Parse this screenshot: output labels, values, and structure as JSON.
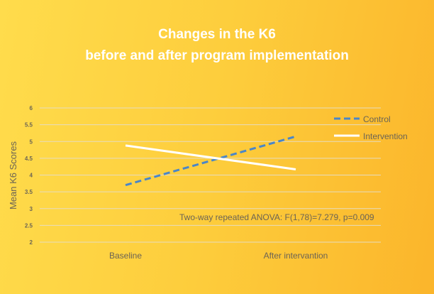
{
  "chart_data": {
    "type": "line",
    "title": [
      "Changes in the K6",
      "before and after program implementation"
    ],
    "xlabel": "",
    "ylabel": "Mean K6 Scores",
    "categories": [
      "Baseline",
      "After intervantion"
    ],
    "ylim": [
      2,
      6
    ],
    "yticks": [
      "2",
      "2.5",
      "3",
      "3.5",
      "4",
      "4.5",
      "5",
      "5.5",
      "6"
    ],
    "grid": true,
    "legend_position": "top-right",
    "series": [
      {
        "name": "Control",
        "values": [
          3.7,
          5.15
        ],
        "color": "#4a86c8",
        "dash": true
      },
      {
        "name": "Intervention",
        "values": [
          4.88,
          4.17
        ],
        "color": "#ffffff",
        "dash": false
      }
    ],
    "annotation": "Two-way repeated ANOVA: F(1,78)=7.279, p=0.009"
  }
}
